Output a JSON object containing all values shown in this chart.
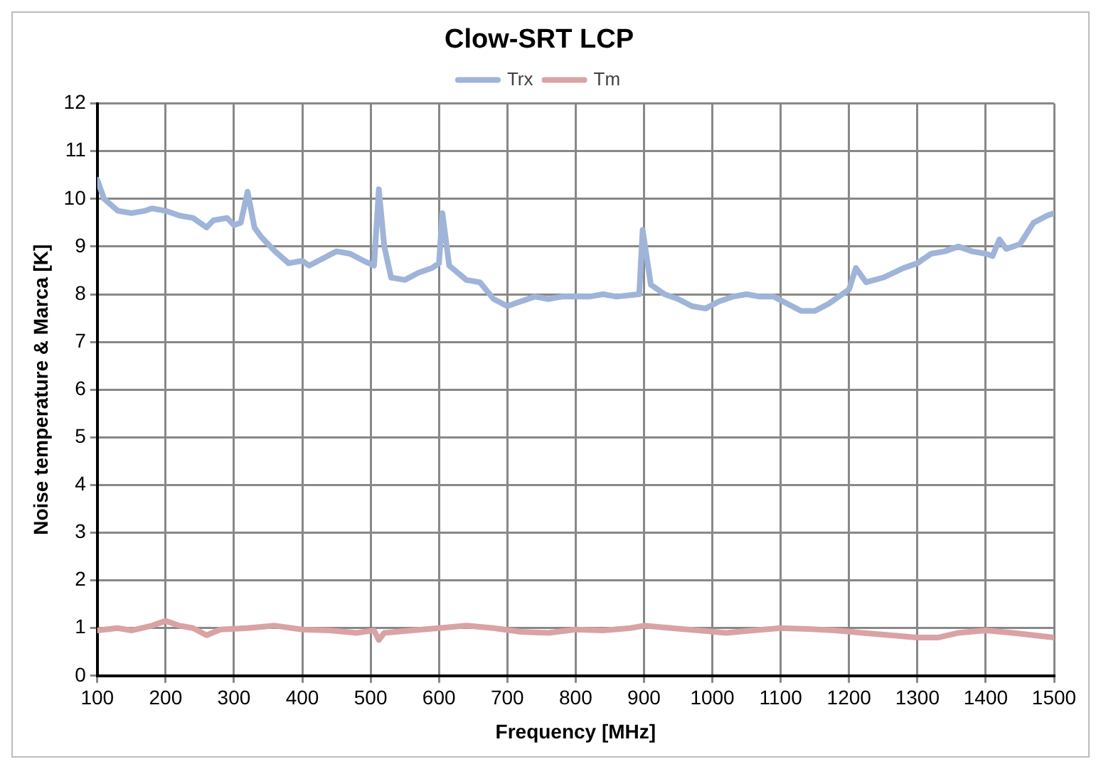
{
  "chart_data": {
    "type": "line",
    "title": "Clow-SRT LCP",
    "xlabel": "Frequency [MHz]",
    "ylabel": "Noise temperature & Marca [K]",
    "xlim": [
      100,
      1500
    ],
    "xticks": [
      100,
      200,
      300,
      400,
      500,
      600,
      700,
      800,
      900,
      1000,
      1100,
      1200,
      1300,
      1400,
      1500
    ],
    "ylim": [
      0,
      12
    ],
    "yticks": [
      0,
      1,
      2,
      3,
      4,
      5,
      6,
      7,
      8,
      9,
      10,
      11,
      12
    ],
    "grid": true,
    "legend": "top",
    "marker": "none",
    "line_style": "solid",
    "series": [
      {
        "name": "Trx",
        "color": "#9fb4d8",
        "x": [
          100,
          110,
          130,
          150,
          170,
          180,
          200,
          220,
          240,
          260,
          270,
          290,
          300,
          310,
          320,
          330,
          340,
          360,
          380,
          400,
          410,
          430,
          450,
          470,
          490,
          505,
          512,
          520,
          530,
          550,
          570,
          590,
          600,
          605,
          615,
          640,
          660,
          680,
          700,
          720,
          740,
          760,
          780,
          800,
          820,
          840,
          860,
          880,
          893,
          898,
          910,
          930,
          950,
          970,
          990,
          1010,
          1030,
          1050,
          1070,
          1090,
          1110,
          1130,
          1150,
          1170,
          1190,
          1200,
          1210,
          1225,
          1250,
          1280,
          1300,
          1320,
          1340,
          1360,
          1380,
          1400,
          1410,
          1420,
          1430,
          1450,
          1470,
          1490,
          1500
        ],
        "values": [
          10.4,
          10.0,
          9.75,
          9.7,
          9.75,
          9.8,
          9.75,
          9.65,
          9.6,
          9.4,
          9.55,
          9.6,
          9.45,
          9.5,
          10.15,
          9.4,
          9.2,
          8.9,
          8.65,
          8.7,
          8.6,
          8.75,
          8.9,
          8.85,
          8.7,
          8.6,
          10.2,
          9.0,
          8.35,
          8.3,
          8.45,
          8.55,
          8.65,
          9.7,
          8.6,
          8.3,
          8.25,
          7.9,
          7.75,
          7.85,
          7.95,
          7.9,
          7.95,
          7.95,
          7.95,
          8.0,
          7.95,
          7.98,
          8.0,
          9.35,
          8.2,
          8.0,
          7.9,
          7.75,
          7.7,
          7.85,
          7.95,
          8.0,
          7.95,
          7.95,
          7.8,
          7.65,
          7.65,
          7.8,
          8.0,
          8.1,
          8.55,
          8.25,
          8.35,
          8.55,
          8.65,
          8.85,
          8.9,
          9.0,
          8.9,
          8.85,
          8.8,
          9.15,
          8.95,
          9.05,
          9.5,
          9.65,
          9.7
        ]
      },
      {
        "name": "Tm",
        "color": "#d9a3a3",
        "x": [
          100,
          130,
          150,
          180,
          200,
          220,
          240,
          260,
          280,
          320,
          360,
          400,
          440,
          480,
          505,
          512,
          520,
          560,
          600,
          640,
          680,
          720,
          760,
          800,
          840,
          880,
          900,
          940,
          980,
          1020,
          1060,
          1100,
          1140,
          1180,
          1220,
          1260,
          1300,
          1330,
          1360,
          1400,
          1440,
          1470,
          1500
        ],
        "values": [
          0.95,
          1.0,
          0.95,
          1.05,
          1.15,
          1.05,
          1.0,
          0.85,
          0.97,
          1.0,
          1.05,
          0.97,
          0.95,
          0.9,
          0.95,
          0.75,
          0.9,
          0.95,
          1.0,
          1.05,
          1.0,
          0.92,
          0.9,
          0.97,
          0.95,
          1.0,
          1.05,
          1.0,
          0.95,
          0.9,
          0.95,
          1.0,
          0.98,
          0.95,
          0.9,
          0.85,
          0.8,
          0.8,
          0.9,
          0.95,
          0.9,
          0.85,
          0.8
        ]
      }
    ]
  }
}
